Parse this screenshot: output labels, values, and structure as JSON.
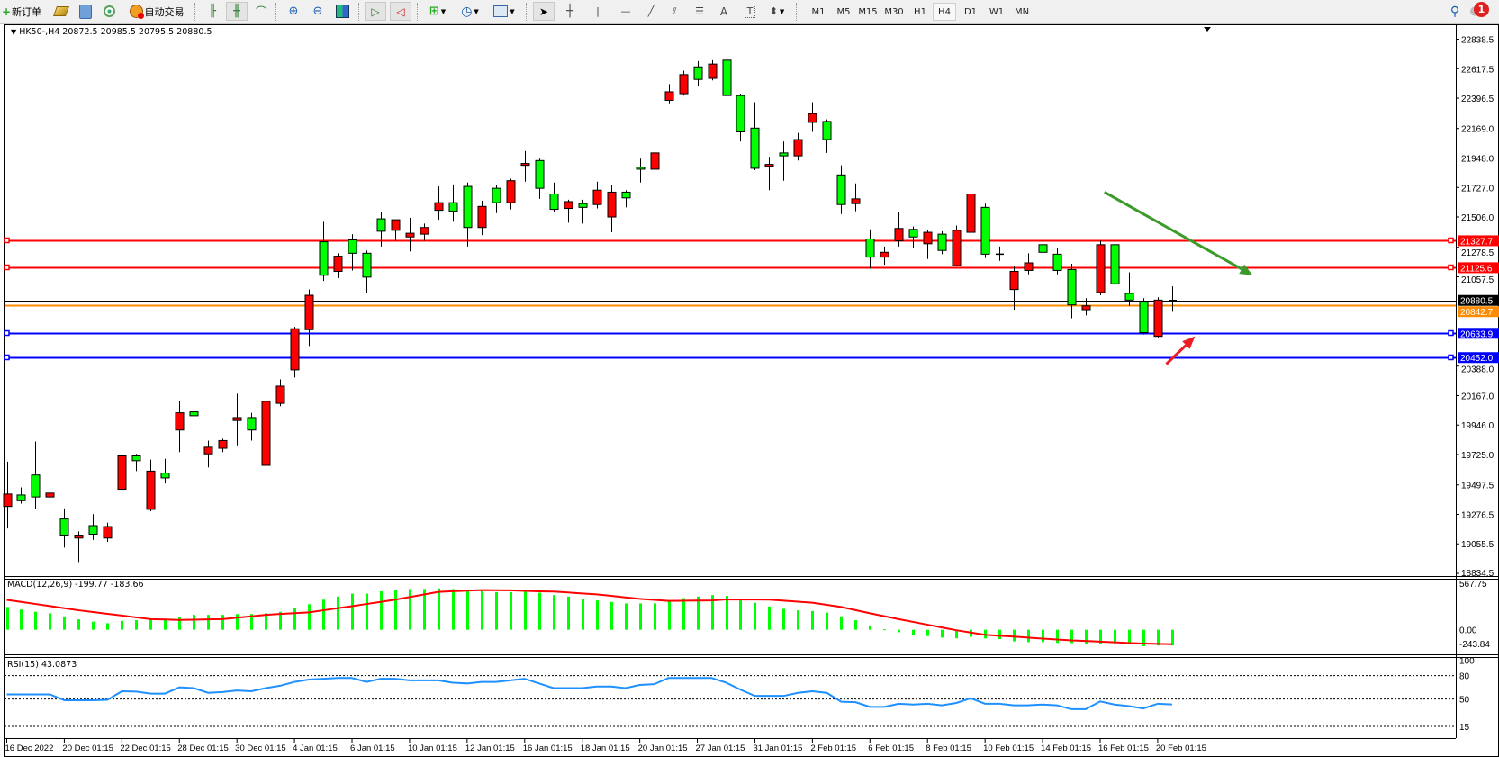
{
  "toolbar": {
    "new_order": "新订单",
    "auto_trading": "自动交易",
    "timeframes": [
      "M1",
      "M5",
      "M15",
      "M30",
      "H1",
      "H4",
      "D1",
      "W1",
      "MN"
    ],
    "active_timeframe": "H4",
    "notification_count": "1",
    "icons": [
      "new-order-icon",
      "gold-bars-icon",
      "user-icon",
      "signals-icon",
      "auto-trading-icon",
      "bar-chart-icon",
      "candlestick-icon",
      "line-chart-icon",
      "zoom-in-icon",
      "zoom-out-icon",
      "tile-windows-icon",
      "chart-shift-icon",
      "autoscroll-icon",
      "indicators-icon",
      "periods-icon",
      "templates-icon",
      "cursor-icon",
      "crosshair-icon",
      "vertical-line-icon",
      "horizontal-line-icon",
      "trendline-icon",
      "equidistant-channel-icon",
      "fibonacci-icon",
      "text-icon",
      "text-label-icon",
      "arrows-icon",
      "search-icon",
      "notification-icon"
    ]
  },
  "chart": {
    "symbol_info": "HK50-,H4  20872.5 20985.5 20795.5 20880.5"
  },
  "chart_data": {
    "type": "candlestick",
    "symbol": "HK50-",
    "timeframe": "H4",
    "colors": {
      "up": "#ff0000",
      "down": "#00ff00",
      "outline": "#000000",
      "macd_histogram": "#00ff00",
      "macd_signal": "#ff0000",
      "rsi": "#1e90ff"
    },
    "ylim": [
      18834.5,
      22838.5
    ],
    "candle_fields": [
      "open",
      "high",
      "low",
      "close"
    ],
    "candles": [
      [
        19336,
        19672,
        19171,
        19429
      ],
      [
        19422,
        19479,
        19357,
        19379
      ],
      [
        19572,
        19823,
        19314,
        19407
      ],
      [
        19407,
        19450,
        19300,
        19436
      ],
      [
        19242,
        19321,
        19028,
        19121
      ],
      [
        19099,
        19149,
        18920,
        19121
      ],
      [
        19192,
        19278,
        19085,
        19128
      ],
      [
        19099,
        19214,
        19071,
        19185
      ],
      [
        19465,
        19772,
        19450,
        19715
      ],
      [
        19715,
        19730,
        19601,
        19679
      ],
      [
        19314,
        19687,
        19300,
        19601
      ],
      [
        19586,
        19694,
        19508,
        19550
      ],
      [
        19909,
        20124,
        19744,
        20038
      ],
      [
        20045,
        20052,
        19801,
        20016
      ],
      [
        19730,
        19830,
        19629,
        19780
      ],
      [
        19772,
        19844,
        19744,
        19830
      ],
      [
        19980,
        20181,
        19794,
        20002
      ],
      [
        20002,
        20038,
        19830,
        19909
      ],
      [
        19644,
        20138,
        19328,
        20124
      ],
      [
        20109,
        20288,
        20088,
        20238
      ],
      [
        20360,
        20682,
        20303,
        20668
      ],
      [
        20661,
        20962,
        20539,
        20919
      ],
      [
        21320,
        21470,
        21026,
        21069
      ],
      [
        21098,
        21234,
        21048,
        21212
      ],
      [
        21334,
        21377,
        21105,
        21234
      ],
      [
        21234,
        21255,
        20933,
        21055
      ],
      [
        21492,
        21542,
        21284,
        21399
      ],
      [
        21406,
        21485,
        21327,
        21485
      ],
      [
        21356,
        21499,
        21248,
        21384
      ],
      [
        21377,
        21456,
        21327,
        21427
      ],
      [
        21556,
        21735,
        21485,
        21613
      ],
      [
        21613,
        21750,
        21470,
        21549
      ],
      [
        21735,
        21764,
        21284,
        21427
      ],
      [
        21427,
        21628,
        21370,
        21585
      ],
      [
        21721,
        21742,
        21535,
        21613
      ],
      [
        21613,
        21793,
        21563,
        21778
      ],
      [
        21893,
        22000,
        21771,
        21907
      ],
      [
        21929,
        21943,
        21642,
        21721
      ],
      [
        21678,
        21764,
        21542,
        21563
      ],
      [
        21570,
        21635,
        21463,
        21621
      ],
      [
        21606,
        21635,
        21456,
        21578
      ],
      [
        21599,
        21771,
        21570,
        21707
      ],
      [
        21506,
        21742,
        21391,
        21692
      ],
      [
        21692,
        21707,
        21578,
        21649
      ],
      [
        21878,
        21943,
        21764,
        21864
      ],
      [
        21864,
        22079,
        21850,
        21986
      ],
      [
        22380,
        22502,
        22358,
        22444
      ],
      [
        22430,
        22602,
        22416,
        22573
      ],
      [
        22631,
        22674,
        22487,
        22537
      ],
      [
        22545,
        22681,
        22530,
        22652
      ],
      [
        22681,
        22738,
        22409,
        22416
      ],
      [
        22416,
        22430,
        22072,
        22144
      ],
      [
        22172,
        22366,
        21857,
        21871
      ],
      [
        21886,
        21957,
        21707,
        21900
      ],
      [
        21986,
        22072,
        21778,
        21964
      ],
      [
        21964,
        22136,
        21929,
        22086
      ],
      [
        22215,
        22366,
        22144,
        22280
      ],
      [
        22222,
        22237,
        21986,
        22086
      ],
      [
        21821,
        21893,
        21528,
        21599
      ],
      [
        21606,
        21757,
        21549,
        21642
      ],
      [
        21341,
        21413,
        21119,
        21205
      ],
      [
        21205,
        21284,
        21148,
        21241
      ],
      [
        21327,
        21542,
        21284,
        21420
      ],
      [
        21413,
        21434,
        21277,
        21356
      ],
      [
        21305,
        21406,
        21191,
        21391
      ],
      [
        21377,
        21399,
        21227,
        21255
      ],
      [
        21141,
        21442,
        21134,
        21406
      ],
      [
        21391,
        21707,
        21377,
        21678
      ],
      [
        21578,
        21606,
        21198,
        21227
      ],
      [
        21227,
        21284,
        21177,
        21227
      ],
      [
        20962,
        21134,
        20811,
        21098
      ],
      [
        21105,
        21234,
        21076,
        21162
      ],
      [
        21298,
        21327,
        21126,
        21241
      ],
      [
        21227,
        21270,
        21076,
        21105
      ],
      [
        21112,
        21155,
        20747,
        20847
      ],
      [
        20811,
        20897,
        20768,
        20840
      ],
      [
        20940,
        21327,
        20919,
        21298
      ],
      [
        21298,
        21334,
        20940,
        21005
      ],
      [
        20933,
        21091,
        20840,
        20883
      ],
      [
        20868,
        20897,
        20625,
        20639
      ],
      [
        20611,
        20904,
        20603,
        20883
      ],
      [
        20872.5,
        20985.5,
        20795.5,
        20880.5
      ]
    ],
    "price_ticks": [
      "22838.5",
      "22617.5",
      "22396.5",
      "22169.0",
      "21948.0",
      "21727.0",
      "21506.0",
      "21278.5",
      "21057.5",
      "20388.0",
      "20167.0",
      "19946.0",
      "19725.0",
      "19497.5",
      "19276.5",
      "19055.5",
      "18834.5"
    ],
    "x_tick_labels": [
      "16 Dec 2022",
      "20 Dec 01:15",
      "22 Dec 01:15",
      "28 Dec 01:15",
      "30 Dec 01:15",
      "4 Jan 01:15",
      "6 Jan 01:15",
      "10 Jan 01:15",
      "12 Jan 01:15",
      "16 Jan 01:15",
      "18 Jan 01:15",
      "20 Jan 01:15",
      "27 Jan 01:15",
      "31 Jan 01:15",
      "2 Feb 01:15",
      "6 Feb 01:15",
      "8 Feb 01:15",
      "10 Feb 01:15",
      "14 Feb 01:15",
      "16 Feb 01:15",
      "20 Feb 01:15"
    ],
    "x_tick_every_n_candles": 4,
    "horizontal_lines": [
      {
        "value": 21327.7,
        "label": "21327.7",
        "color": "#ff0000"
      },
      {
        "value": 21125.6,
        "label": "21125.6",
        "color": "#ff0000"
      },
      {
        "value": 20880.5,
        "label": "20880.5",
        "color": "#000000"
      },
      {
        "value": 20842.7,
        "label": "20842.7",
        "color": "#ff8c00"
      },
      {
        "value": 20633.9,
        "label": "20633.9",
        "color": "#0000ff"
      },
      {
        "value": 20452.0,
        "label": "20452.0",
        "color": "#0000ff"
      }
    ],
    "arrows": [
      {
        "color": "#3c9a28",
        "from": [
          76.3,
          21692
        ],
        "to": [
          86.6,
          21069
        ]
      },
      {
        "color": "#ee1c24",
        "from": [
          80.6,
          20403
        ],
        "to": [
          82.6,
          20611
        ]
      }
    ],
    "macd": {
      "title": "MACD(12,26,9) -199.77 -183.66",
      "ylim": [
        -243.84,
        567.75
      ],
      "ticks": [
        "567.75",
        "0.00",
        "-243.84"
      ],
      "histogram": [
        289,
        257,
        228,
        209,
        170,
        132,
        103,
        83,
        112,
        122,
        138,
        128,
        161,
        189,
        189,
        189,
        199,
        199,
        209,
        228,
        276,
        324,
        382,
        421,
        459,
        459,
        488,
        507,
        517,
        517,
        526,
        517,
        491,
        491,
        478,
        478,
        488,
        469,
        440,
        421,
        392,
        372,
        353,
        334,
        334,
        334,
        372,
        401,
        421,
        440,
        430,
        372,
        343,
        295,
        266,
        247,
        238,
        218,
        170,
        122,
        55,
        6,
        -32,
        -61,
        -80,
        -100,
        -109,
        -90,
        -109,
        -119,
        -148,
        -157,
        -157,
        -167,
        -170,
        -180,
        -175,
        -172,
        -184,
        -209,
        -200,
        -199.77
      ],
      "signal": [
        379,
        353,
        327,
        300,
        274,
        247,
        225,
        202,
        180,
        157,
        135,
        130,
        125,
        128,
        132,
        135,
        153,
        171,
        189,
        200,
        210,
        221,
        247,
        273,
        299,
        327,
        354,
        382,
        415,
        448,
        481,
        489,
        496,
        504,
        502,
        501,
        494,
        488,
        485,
        473,
        461,
        449,
        430,
        411,
        392,
        379,
        366,
        368,
        370,
        372,
        385,
        384,
        383,
        382,
        369,
        356,
        343,
        316,
        289,
        249,
        209,
        172,
        135,
        100,
        64,
        29,
        -6,
        -35,
        -64,
        -76,
        -87,
        -100,
        -112,
        -124,
        -135,
        -143,
        -151,
        -160,
        -168,
        -175,
        -180,
        -183.66
      ]
    },
    "rsi": {
      "title": "RSI(15) 43.0873",
      "ylim": [
        0,
        100
      ],
      "levels": [
        80,
        50,
        15
      ],
      "ticks": [
        "100",
        "80",
        "50",
        "15"
      ],
      "values": [
        56,
        56,
        56,
        56,
        48.5,
        48.5,
        48.5,
        49,
        60,
        59.6,
        57,
        57,
        65,
        64,
        58,
        59,
        61,
        60,
        64,
        67,
        72,
        75,
        76,
        77,
        77,
        72,
        76,
        76,
        74,
        74,
        74,
        71,
        70,
        72,
        72,
        74,
        76,
        70,
        64,
        64,
        64,
        66,
        66,
        64,
        68,
        69,
        77,
        77,
        77,
        77,
        71,
        62,
        54,
        54,
        54,
        58,
        60,
        58,
        46.6,
        46,
        40,
        40,
        44,
        43,
        44,
        42,
        45,
        51,
        44,
        44,
        42,
        42,
        43,
        42,
        37,
        37,
        47,
        43,
        41,
        38,
        44,
        43.0873
      ]
    }
  }
}
